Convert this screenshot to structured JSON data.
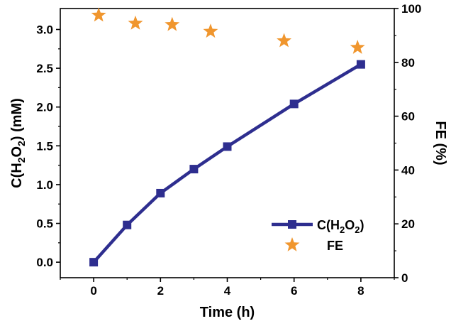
{
  "chart_data": {
    "type": "line",
    "title": "",
    "xlabel": "Time (h)",
    "ylabel_left": {
      "base": "C(H",
      "sub1": "2",
      "mid": "O",
      "sub2": "2",
      "tail": ") (mM)"
    },
    "ylabel_right": "FE (%)",
    "xlim": [
      -1,
      9
    ],
    "ylim_left": [
      -0.2,
      3.27
    ],
    "ylim_right": [
      0,
      100
    ],
    "x_ticks": [
      0,
      2,
      4,
      6,
      8
    ],
    "y_left_ticks": [
      "0.0",
      "0.5",
      "1.0",
      "1.5",
      "2.0",
      "2.5",
      "3.0"
    ],
    "y_right_ticks": [
      "0",
      "20",
      "40",
      "60",
      "80",
      "100"
    ],
    "grid": false,
    "legend_position": "bottom-right",
    "series": [
      {
        "name": "C(H2O2)",
        "legend_label": {
          "base": "C(H",
          "sub1": "2",
          "mid": "O",
          "sub2": "2",
          "tail": ")"
        },
        "axis": "left",
        "marker": "square",
        "color": "#2e2e8f",
        "x": [
          0,
          1,
          2,
          3,
          4,
          6,
          8
        ],
        "y": [
          0.0,
          0.48,
          0.89,
          1.2,
          1.49,
          2.04,
          2.55
        ]
      },
      {
        "name": "FE",
        "legend_label": {
          "base": "FE"
        },
        "axis": "right",
        "marker": "star",
        "color": "#f0962e",
        "x": [
          0.15,
          1.25,
          2.35,
          3.5,
          5.7,
          7.9
        ],
        "y": [
          97.5,
          94.5,
          94,
          91.5,
          88,
          85.5
        ]
      }
    ]
  }
}
